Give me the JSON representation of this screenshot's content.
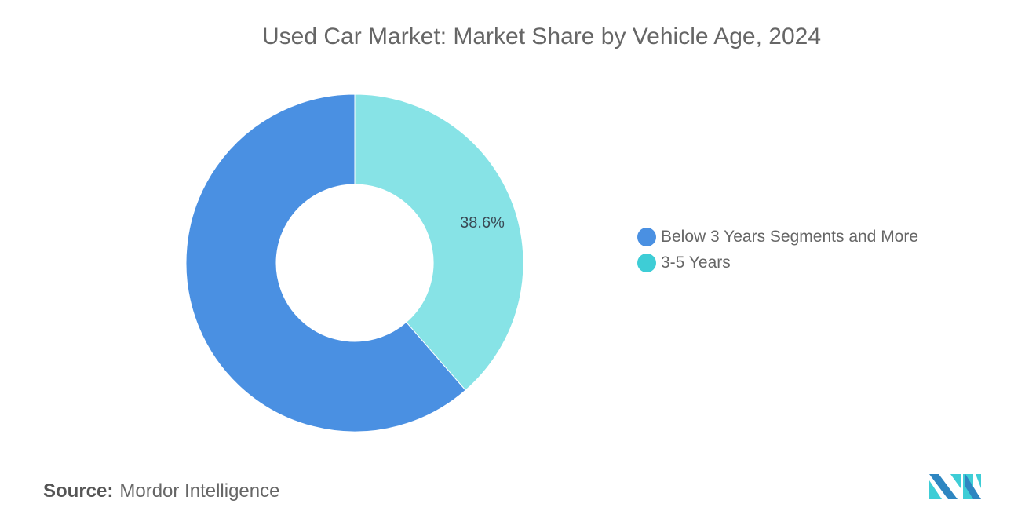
{
  "chart_data": {
    "type": "pie",
    "variant": "donut",
    "title": "Used Car Market: Market Share by Vehicle Age, 2024",
    "categories": [
      "Below 3 Years Segments and More",
      "3-5 Years"
    ],
    "values": [
      61.4,
      38.6
    ],
    "data_labels": [
      "",
      "38.6%"
    ],
    "slice_colors": [
      "#4A90E2",
      "#87E3E6"
    ],
    "legend_colors": [
      "#4A90E2",
      "#3ECDD6"
    ],
    "legend_position": "right"
  },
  "source": {
    "label": "Source:",
    "value": "Mordor Intelligence"
  },
  "logo": {
    "text": "Mordor Intelligence",
    "colors": [
      "#2E86C1",
      "#3ECDD6"
    ]
  }
}
